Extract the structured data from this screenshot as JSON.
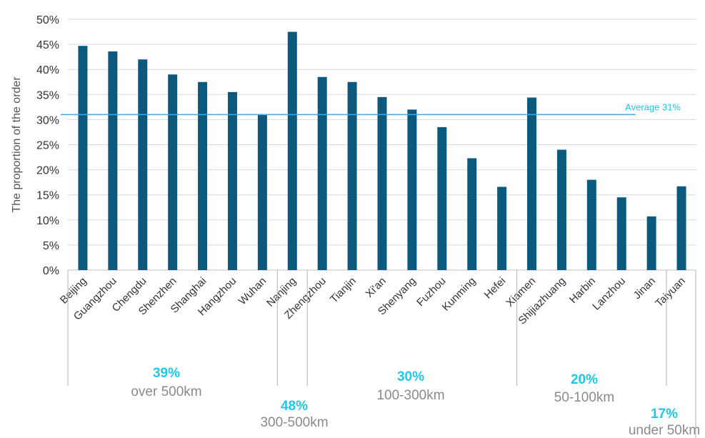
{
  "chart_data": {
    "type": "bar",
    "ylabel": "The proportion of the order",
    "ylim": [
      0,
      50
    ],
    "yticks": [
      "0%",
      "5%",
      "10%",
      "15%",
      "20%",
      "25%",
      "30%",
      "35%",
      "40%",
      "45%",
      "50%"
    ],
    "categories": [
      "Beijing",
      "Guangzhou",
      "Chengdu",
      "Shenzhen",
      "Shanghai",
      "Hangzhou",
      "Wuhan",
      "Nanjing",
      "Zhengzhou",
      "Tianjin",
      "Xi'an",
      "Shenyang",
      "Fuzhou",
      "Kunming",
      "Hefei",
      "Xiamen",
      "Shijiazhuang",
      "Harbin",
      "Lanzhou",
      "Jinan",
      "Taiyuan"
    ],
    "values": [
      44.7,
      43.6,
      42.0,
      39.0,
      37.5,
      35.5,
      31.0,
      47.5,
      38.5,
      37.5,
      34.5,
      32.0,
      28.5,
      22.3,
      16.6,
      34.4,
      24.0,
      18.0,
      14.5,
      10.7,
      16.7
    ],
    "average": {
      "value": 31,
      "label": "Average 31%"
    },
    "groups": [
      {
        "pct": "39%",
        "distance": "over 500km",
        "start": 0,
        "end": 6
      },
      {
        "pct": "48%",
        "distance": "300-500km",
        "start": 7,
        "end": 7
      },
      {
        "pct": "30%",
        "distance": "100-300km",
        "start": 8,
        "end": 14
      },
      {
        "pct": "20%",
        "distance": "50-100km",
        "start": 15,
        "end": 19
      },
      {
        "pct": "17%",
        "distance": "under 50km",
        "start": 20,
        "end": 20
      }
    ],
    "grid": true,
    "colors": {
      "bar": "#0b5a7e",
      "average": "#3fa9e8",
      "group_pct": "#1ec8e6",
      "grid": "#d9d9d9",
      "divider": "#bfbfbf"
    }
  }
}
